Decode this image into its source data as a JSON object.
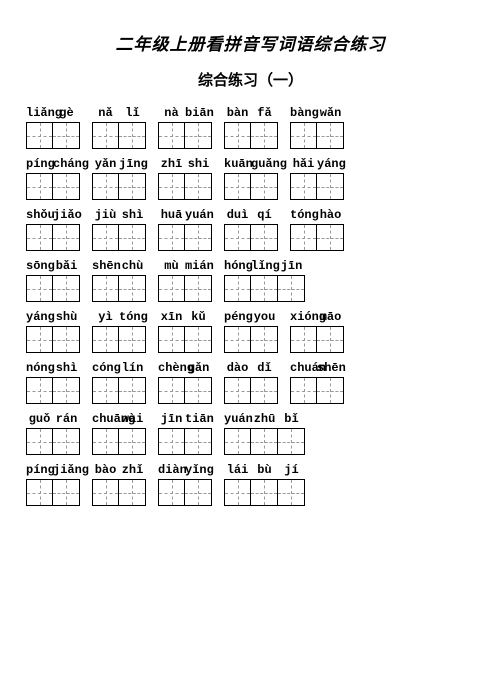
{
  "title_text": "二年级上册看拼音写词语综合练习",
  "subtitle_text": "综合练习（一）",
  "title_fontsize": 17,
  "subtitle_fontsize": 15,
  "pinyin_fontsize": 12,
  "cell_size": 27,
  "row_gap": 12,
  "rows": [
    [
      [
        "liǎng",
        "gè"
      ],
      [
        "nǎ",
        "lǐ"
      ],
      [
        "nà",
        "biān"
      ],
      [
        "bàn",
        "fǎ"
      ],
      [
        "bàng",
        "wǎn"
      ]
    ],
    [
      [
        "píng",
        "cháng"
      ],
      [
        "yǎn",
        "jīng"
      ],
      [
        "zhī",
        "shi"
      ],
      [
        "kuān",
        "guǎng"
      ],
      [
        "hǎi",
        "yáng"
      ]
    ],
    [
      [
        "shǒu",
        "jiǎo"
      ],
      [
        "jiù",
        "shì"
      ],
      [
        "huā",
        "yuán"
      ],
      [
        "duì",
        "qí"
      ],
      [
        "tóng",
        "hào"
      ]
    ],
    [
      [
        "sōng",
        "bǎi"
      ],
      [
        "shēn",
        "chù"
      ],
      [
        "mù",
        "mián"
      ],
      [
        "hóng",
        "lǐng",
        "jīn"
      ]
    ],
    [
      [
        "yáng",
        "shù"
      ],
      [
        "yì",
        "tóng"
      ],
      [
        "xīn",
        "kǔ"
      ],
      [
        "péng",
        "you"
      ],
      [
        "xióng",
        "māo"
      ]
    ],
    [
      [
        "nóng",
        "shì"
      ],
      [
        "cóng",
        "lín"
      ],
      [
        "chèng",
        "gǎn"
      ],
      [
        "dào",
        "dǐ"
      ],
      [
        "chuán",
        "shēn"
      ]
    ],
    [
      [
        "guǒ",
        "rán"
      ],
      [
        "chuāng",
        "wài"
      ],
      [
        "jīn",
        "tiān"
      ],
      [
        "yuán",
        "zhū",
        "bǐ"
      ]
    ],
    [
      [
        "píng",
        "jiǎng"
      ],
      [
        "bào",
        "zhǐ"
      ],
      [
        "diàn",
        "yǐng"
      ],
      [
        "lái",
        "bù",
        "jí"
      ]
    ]
  ]
}
